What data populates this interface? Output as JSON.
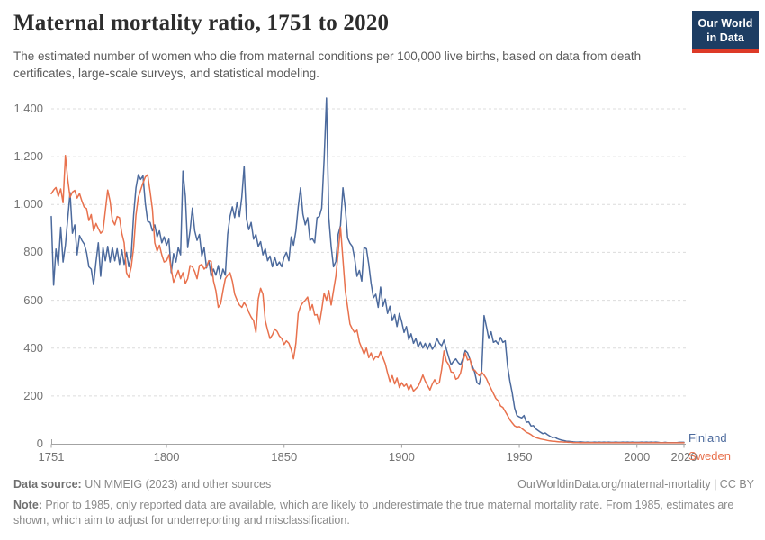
{
  "header": {
    "title": "Maternal mortality ratio, 1751 to 2020",
    "subtitle": "The estimated number of women who die from maternal conditions per 100,000 live births, based on data from death certificates, large-scale surveys, and statistical modeling.",
    "logo": {
      "line1": "Our World",
      "line2": "in Data",
      "bg_color": "#1d3d63",
      "accent_color": "#dd3a27"
    }
  },
  "chart_data": {
    "type": "line",
    "title": "Maternal mortality ratio, 1751 to 2020",
    "xlabel": "",
    "ylabel": "",
    "xlim": [
      1751,
      2020
    ],
    "ylim": [
      0,
      1400
    ],
    "grid": "horizontal-dashed",
    "legend_position": "right-of-plot",
    "x_ticks": [
      1751,
      1800,
      1850,
      1900,
      1950,
      2000,
      2020
    ],
    "x_tick_labels": [
      "1751",
      "1800",
      "1850",
      "1900",
      "1950",
      "2000",
      "2020"
    ],
    "y_ticks": [
      0,
      200,
      400,
      600,
      800,
      1000,
      1200,
      1400
    ],
    "y_tick_labels": [
      "0",
      "200",
      "400",
      "600",
      "800",
      "1,000",
      "1,200",
      "1,400"
    ],
    "series": [
      {
        "name": "Finland",
        "color": "#4c6a9d",
        "start_year": 1751,
        "values": [
          950,
          663,
          814,
          745,
          905,
          760,
          830,
          940,
          1050,
          880,
          915,
          790,
          870,
          850,
          835,
          800,
          740,
          730,
          665,
          760,
          840,
          700,
          820,
          765,
          825,
          760,
          820,
          765,
          815,
          750,
          810,
          750,
          800,
          740,
          790,
          955,
          1070,
          1125,
          1105,
          1120,
          1005,
          930,
          925,
          890,
          915,
          865,
          890,
          840,
          865,
          830,
          855,
          715,
          795,
          760,
          820,
          790,
          1140,
          1035,
          820,
          890,
          985,
          890,
          850,
          875,
          785,
          820,
          735,
          765,
          700,
          730,
          705,
          745,
          690,
          730,
          705,
          875,
          950,
          990,
          945,
          1010,
          950,
          1030,
          1160,
          940,
          895,
          925,
          855,
          875,
          825,
          845,
          790,
          815,
          765,
          785,
          740,
          780,
          745,
          760,
          740,
          780,
          800,
          765,
          865,
          830,
          890,
          990,
          1070,
          960,
          915,
          945,
          850,
          858,
          840,
          945,
          950,
          985,
          1190,
          1445,
          945,
          825,
          740,
          762,
          875,
          912,
          1070,
          985,
          860,
          838,
          825,
          775,
          700,
          725,
          680,
          820,
          815,
          750,
          670,
          610,
          625,
          570,
          655,
          575,
          605,
          545,
          575,
          515,
          540,
          490,
          545,
          510,
          465,
          490,
          435,
          460,
          420,
          440,
          405,
          425,
          400,
          420,
          395,
          420,
          395,
          410,
          440,
          420,
          410,
          433,
          395,
          360,
          330,
          345,
          355,
          340,
          330,
          355,
          390,
          380,
          353,
          325,
          300,
          255,
          248,
          300,
          536,
          490,
          440,
          468,
          424,
          430,
          417,
          445,
          424,
          430,
          325,
          262,
          212,
          150,
          118,
          112,
          108,
          118,
          90,
          92,
          74,
          76,
          62,
          55,
          48,
          42,
          45,
          38,
          32,
          26,
          28,
          22,
          18,
          15,
          13,
          11,
          10,
          9,
          8,
          7,
          7,
          8,
          7,
          6,
          7,
          6,
          6,
          7,
          6,
          7,
          6,
          7,
          6,
          7,
          6,
          6,
          7,
          6,
          6,
          7,
          6,
          7,
          6,
          7,
          6,
          6,
          6,
          7,
          6,
          7,
          6,
          7,
          6,
          7,
          6,
          5,
          5,
          6,
          5,
          5,
          5,
          5,
          5,
          6,
          6,
          6
        ]
      },
      {
        "name": "Sweden",
        "color": "#e8714d",
        "start_year": 1751,
        "values": [
          1045,
          1060,
          1071,
          1034,
          1065,
          1008,
          1205,
          1105,
          1030,
          1052,
          1059,
          1027,
          1046,
          1015,
          989,
          983,
          933,
          958,
          890,
          921,
          900,
          880,
          890,
          975,
          1060,
          1015,
          935,
          915,
          950,
          945,
          880,
          840,
          715,
          695,
          740,
          820,
          955,
          1030,
          1060,
          1090,
          1115,
          1125,
          1055,
          980,
          840,
          805,
          830,
          790,
          760,
          765,
          790,
          730,
          675,
          700,
          725,
          690,
          715,
          670,
          690,
          745,
          740,
          720,
          690,
          745,
          750,
          730,
          740,
          765,
          763,
          680,
          640,
          570,
          585,
          640,
          690,
          705,
          715,
          680,
          625,
          600,
          580,
          570,
          590,
          575,
          550,
          530,
          515,
          465,
          605,
          650,
          625,
          515,
          475,
          440,
          455,
          480,
          470,
          450,
          440,
          415,
          430,
          420,
          395,
          355,
          420,
          545,
          575,
          590,
          600,
          613,
          557,
          582,
          538,
          540,
          500,
          560,
          630,
          600,
          640,
          580,
          640,
          700,
          800,
          905,
          770,
          640,
          570,
          500,
          480,
          465,
          475,
          425,
          400,
          375,
          400,
          360,
          380,
          350,
          365,
          360,
          385,
          360,
          335,
          295,
          260,
          285,
          250,
          275,
          235,
          255,
          240,
          250,
          225,
          245,
          220,
          230,
          240,
          262,
          287,
          262,
          243,
          225,
          250,
          268,
          250,
          255,
          312,
          388,
          345,
          330,
          300,
          298,
          270,
          275,
          295,
          340,
          380,
          350,
          355,
          310,
          308,
          295,
          285,
          300,
          287,
          272,
          250,
          230,
          210,
          190,
          180,
          158,
          152,
          135,
          118,
          100,
          87,
          75,
          70,
          72,
          64,
          56,
          48,
          44,
          38,
          31,
          26,
          23,
          20,
          18,
          16,
          14,
          12,
          11,
          10,
          9,
          8,
          8,
          7,
          7,
          6,
          6,
          5,
          5,
          5,
          4,
          5,
          4,
          5,
          4,
          5,
          4,
          4,
          5,
          4,
          4,
          5,
          4,
          4,
          4,
          5,
          4,
          4,
          5,
          4,
          4,
          4,
          5,
          4,
          4,
          4,
          5,
          4,
          4,
          4,
          4,
          5,
          4,
          4,
          4,
          4,
          4,
          4,
          4,
          4,
          4,
          4,
          4,
          4,
          4
        ]
      }
    ]
  },
  "footer": {
    "datasource_label": "Data source:",
    "datasource_text": " UN MMEIG (2023) and other sources",
    "link": "OurWorldinData.org/maternal-mortality | CC BY",
    "note_label": "Note:",
    "note_text": " Prior to 1985, only reported data are available, which are likely to underestimate the true maternal mortality rate. From 1985, estimates are shown, which aim to adjust for underreporting and misclassification."
  }
}
